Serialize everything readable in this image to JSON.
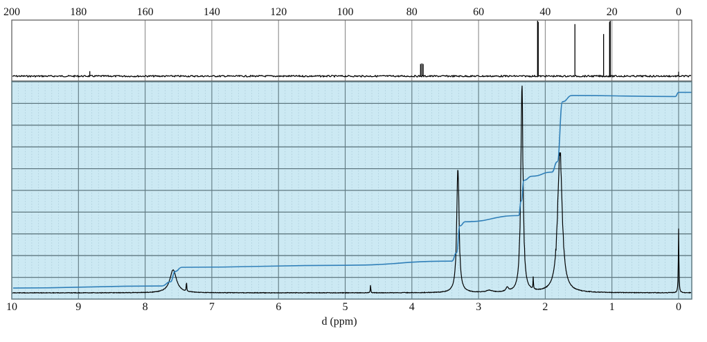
{
  "chart_data": [
    {
      "type": "line",
      "title": "",
      "panel": "top",
      "xlabel": "",
      "ylabel": "",
      "x_axis_position": "top",
      "xlim": [
        200,
        -4
      ],
      "ticks": [
        200,
        180,
        160,
        140,
        120,
        100,
        80,
        60,
        40,
        20,
        0
      ],
      "tick_labels": [
        "200",
        "180",
        "160",
        "140",
        "120",
        "100",
        "80",
        "60",
        "40",
        "20",
        "0"
      ],
      "grid": {
        "vertical": true,
        "horizontal": false
      },
      "background": "#ffffff",
      "peaks": [
        {
          "x": 176.6,
          "height": 0.09
        },
        {
          "x": 77.4,
          "height": 0.22
        },
        {
          "x": 77.0,
          "height": 0.23
        },
        {
          "x": 76.6,
          "height": 0.22
        },
        {
          "x": 42.3,
          "height": 1.0
        },
        {
          "x": 42.1,
          "height": 0.98
        },
        {
          "x": 31.1,
          "height": 0.94
        },
        {
          "x": 22.5,
          "height": 0.76
        },
        {
          "x": 20.7,
          "height": 0.98
        },
        {
          "x": 20.5,
          "height": 1.0
        },
        {
          "x": 0.0,
          "height": 0.08
        }
      ]
    },
    {
      "type": "line",
      "title": "",
      "panel": "bottom",
      "xlabel": "d (ppm)",
      "ylabel": "",
      "xlim": [
        10,
        -0.2
      ],
      "ticks": [
        10,
        9,
        8,
        7,
        6,
        5,
        4,
        3,
        2,
        1,
        0
      ],
      "tick_labels": [
        "10",
        "9",
        "8",
        "7",
        "6",
        "5",
        "4",
        "3",
        "2",
        "1",
        "0"
      ],
      "grid": {
        "vertical": true,
        "horizontal": true,
        "horizontal_lines": 10,
        "minor_vertical": true
      },
      "background": "#cce9f3",
      "series": [
        {
          "name": "spectrum",
          "color": "#000000",
          "peaks": [
            {
              "x": 7.58,
              "height": 0.11,
              "width": 0.06
            },
            {
              "x": 7.38,
              "height": 0.05,
              "width": 0.004
            },
            {
              "x": 4.62,
              "height": 0.04,
              "width": 0.004
            },
            {
              "x": 3.31,
              "height": 0.63,
              "width": 0.02
            },
            {
              "x": 2.84,
              "height": 0.01,
              "width": 0.05
            },
            {
              "x": 2.57,
              "height": 0.02,
              "width": 0.02
            },
            {
              "x": 2.35,
              "height": 0.98,
              "width": 0.02
            },
            {
              "x": 2.18,
              "height": 0.06,
              "width": 0.004
            },
            {
              "x": 1.78,
              "height": 0.68,
              "width": 0.04
            },
            {
              "x": 0.0,
              "height": 0.32,
              "width": 0.005
            }
          ]
        },
        {
          "name": "integral",
          "color": "#2f7fb8",
          "points": [
            [
              9.98,
              0.03
            ],
            [
              7.75,
              0.04
            ],
            [
              7.62,
              0.06
            ],
            [
              7.55,
              0.11
            ],
            [
              7.45,
              0.13
            ],
            [
              5.0,
              0.14
            ],
            [
              3.4,
              0.16
            ],
            [
              3.33,
              0.2
            ],
            [
              3.28,
              0.33
            ],
            [
              3.2,
              0.35
            ],
            [
              2.4,
              0.38
            ],
            [
              2.36,
              0.45
            ],
            [
              2.32,
              0.55
            ],
            [
              2.2,
              0.57
            ],
            [
              1.9,
              0.59
            ],
            [
              1.82,
              0.64
            ],
            [
              1.74,
              0.93
            ],
            [
              1.6,
              0.96
            ],
            [
              0.05,
              0.955
            ],
            [
              0.0,
              0.975
            ],
            [
              -0.2,
              0.975
            ]
          ]
        }
      ]
    }
  ]
}
